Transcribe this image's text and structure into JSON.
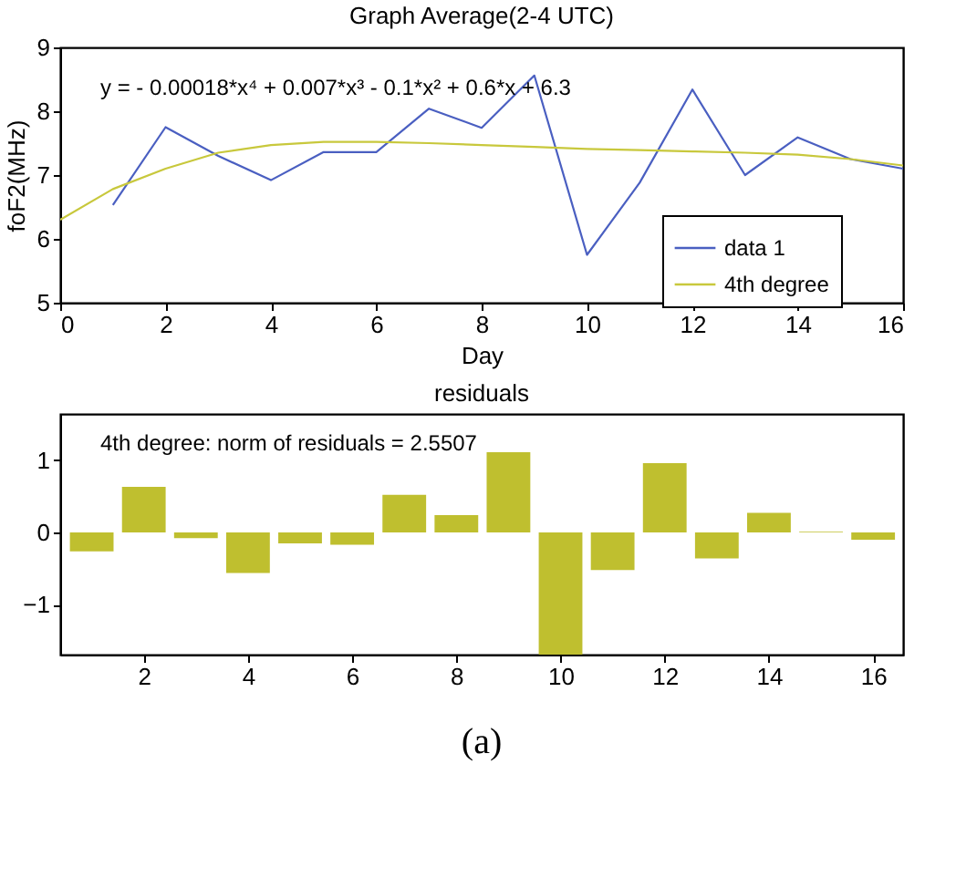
{
  "chart_data": [
    {
      "type": "line",
      "title": "Graph Average(2-4 UTC)",
      "xlabel": "Day",
      "ylabel": "foF2(MHz)",
      "xlim": [
        0,
        16
      ],
      "xticks": [
        0,
        2,
        4,
        6,
        8,
        10,
        12,
        14,
        16
      ],
      "ylim": [
        5,
        9
      ],
      "yticks": [
        5,
        6,
        7,
        8,
        9
      ],
      "grid": false,
      "legend": "bottom right",
      "line_style": "solid",
      "marker": "none",
      "annotations": [
        "y = - 0.00018*x⁴ + 0.007*x³ - 0.1*x² + 0.6*x + 6.3"
      ],
      "series": [
        {
          "name": "data 1",
          "color": "#4a5fc1",
          "x": [
            1,
            2,
            3,
            4,
            5,
            6,
            7,
            8,
            9,
            10,
            11,
            12,
            13,
            14,
            15,
            16
          ],
          "values": [
            6.53,
            7.75,
            7.3,
            6.92,
            7.36,
            7.36,
            8.04,
            7.74,
            8.56,
            5.75,
            6.88,
            8.34,
            7.0,
            7.59,
            7.25,
            7.1
          ]
        },
        {
          "name": "4th degree",
          "color": "#c8c83c",
          "x": [
            0,
            1,
            2,
            3,
            4,
            5,
            6,
            7,
            8,
            9,
            10,
            11,
            12,
            13,
            14,
            15,
            16
          ],
          "values": [
            6.3,
            6.78,
            7.1,
            7.35,
            7.47,
            7.52,
            7.52,
            7.5,
            7.47,
            7.44,
            7.41,
            7.39,
            7.37,
            7.35,
            7.32,
            7.25,
            7.15
          ]
        }
      ]
    },
    {
      "type": "bar",
      "title": "residuals",
      "xlim": [
        0.57,
        16.4
      ],
      "xticks": [
        2,
        4,
        6,
        8,
        10,
        12,
        14,
        16
      ],
      "ylim": [
        -1.69,
        1.64
      ],
      "yticks": [
        -1,
        0,
        1
      ],
      "grid": false,
      "annotations": [
        "4th degree: norm of residuals = 2.5507",
        "(a)"
      ],
      "x": [
        1,
        2,
        3,
        4,
        5,
        6,
        7,
        8,
        9,
        10,
        11,
        12,
        13,
        14,
        15,
        16
      ],
      "series": [
        {
          "color": "#bfbf2f",
          "values": [
            -0.26,
            0.63,
            -0.08,
            -0.56,
            -0.15,
            -0.17,
            0.52,
            0.24,
            1.11,
            -1.69,
            -0.52,
            0.96,
            -0.36,
            0.27,
            0.01,
            -0.1
          ]
        }
      ]
    }
  ]
}
